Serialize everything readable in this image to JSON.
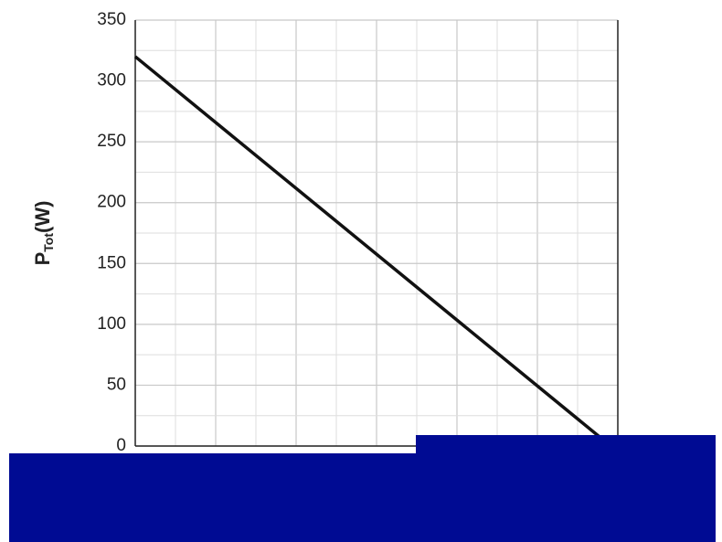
{
  "chart_data": {
    "type": "line",
    "y_label": "P",
    "y_label_sub": "Tot",
    "y_label_unit": "(W)",
    "x": [
      0,
      97
    ],
    "xlim": [
      0,
      100
    ],
    "series": [
      {
        "color": "#111111",
        "values": [
          320,
          5
        ]
      }
    ],
    "ylim": [
      0,
      350
    ],
    "yticks": [
      0,
      50,
      100,
      150,
      200,
      250,
      300,
      350
    ],
    "grid": true
  }
}
